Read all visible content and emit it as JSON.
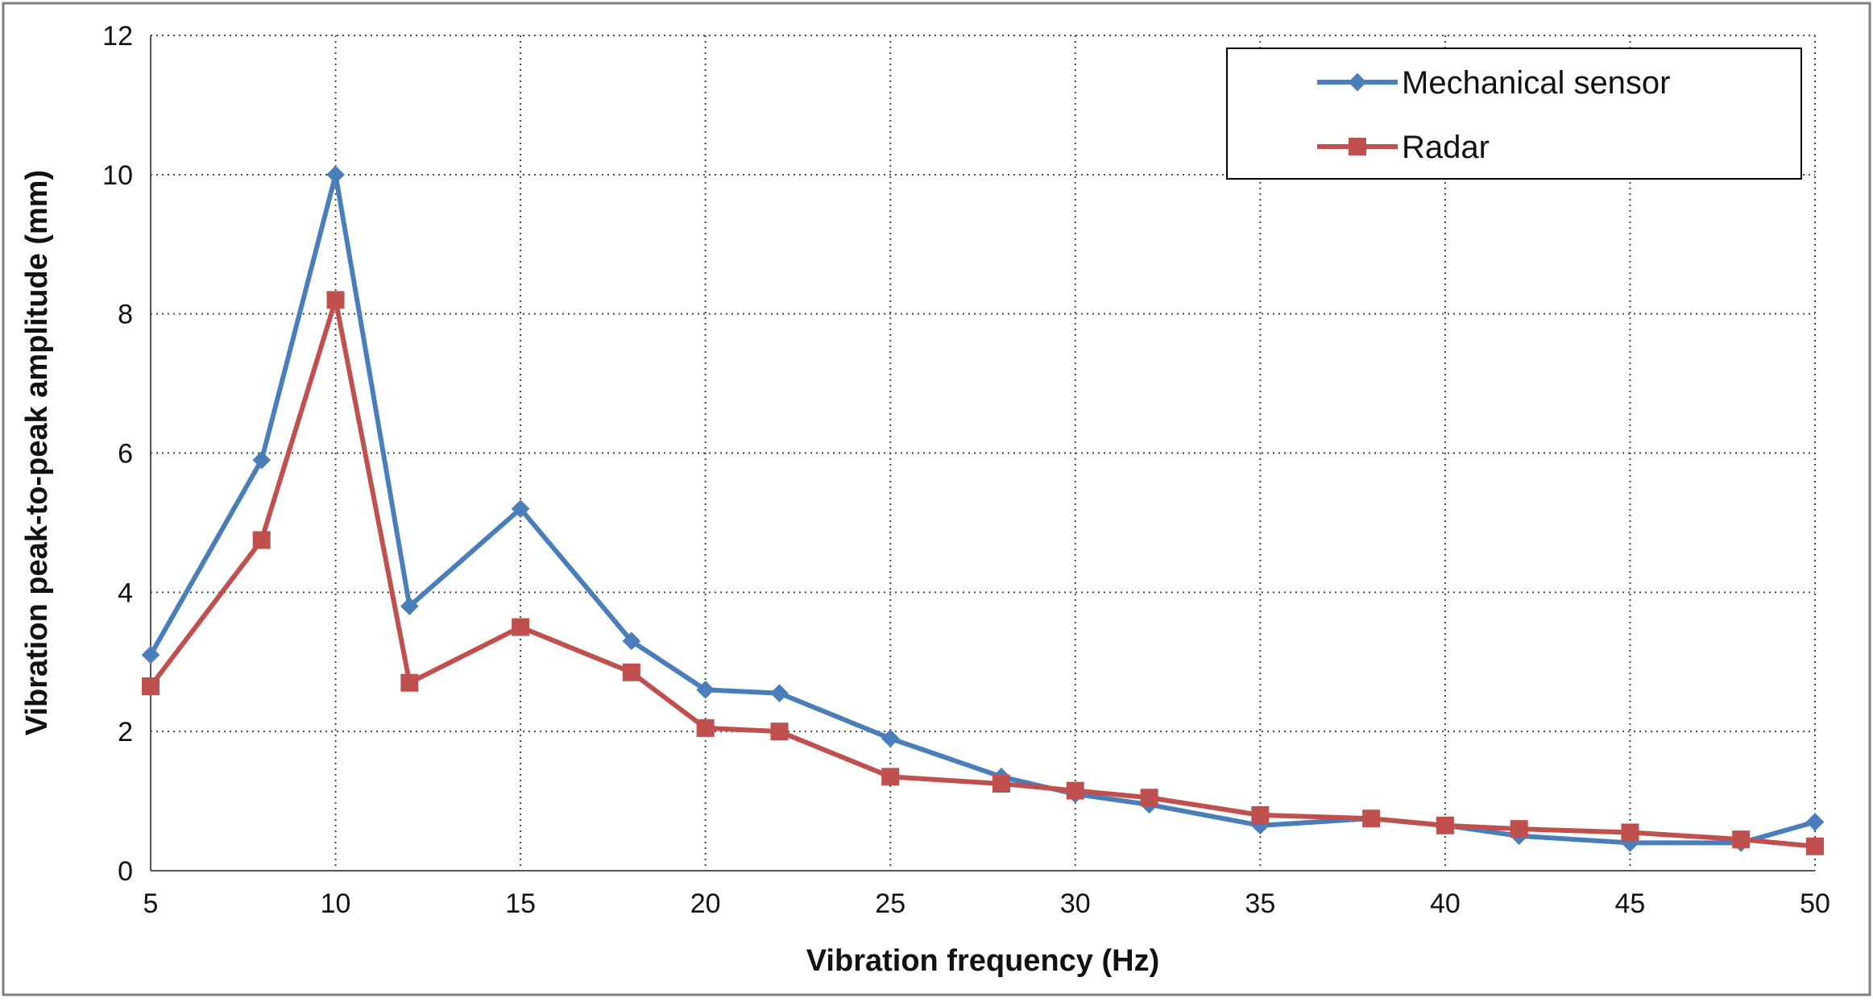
{
  "chart_data": {
    "type": "line",
    "title": "",
    "xlabel": "Vibration frequency (Hz)",
    "ylabel": "Vibration peak-to-peak amplitude (mm)",
    "xlim": [
      5,
      50
    ],
    "ylim": [
      0,
      12
    ],
    "x_ticks": [
      "5",
      "10",
      "15",
      "20",
      "25",
      "30",
      "35",
      "40",
      "45",
      "50"
    ],
    "y_ticks": [
      "0",
      "2",
      "4",
      "6",
      "8",
      "10",
      "12"
    ],
    "grid": true,
    "legend_position": "top-right",
    "x": [
      5,
      8,
      10,
      12,
      15,
      18,
      20,
      22,
      25,
      28,
      30,
      32,
      35,
      38,
      40,
      42,
      45,
      48,
      50
    ],
    "series": [
      {
        "name": "Mechanical sensor",
        "color": "#4a7ebb",
        "marker": "diamond",
        "values": [
          3.1,
          5.9,
          10.0,
          3.8,
          5.2,
          3.3,
          2.6,
          2.55,
          1.9,
          1.35,
          1.1,
          0.95,
          0.65,
          0.75,
          0.65,
          0.5,
          0.4,
          0.4,
          0.7
        ]
      },
      {
        "name": "Radar",
        "color": "#c0504d",
        "marker": "square",
        "values": [
          2.65,
          4.75,
          8.2,
          2.7,
          3.5,
          2.85,
          2.05,
          2.0,
          1.35,
          1.25,
          1.15,
          1.05,
          0.8,
          0.75,
          0.65,
          0.6,
          0.55,
          0.45,
          0.35
        ]
      }
    ]
  }
}
